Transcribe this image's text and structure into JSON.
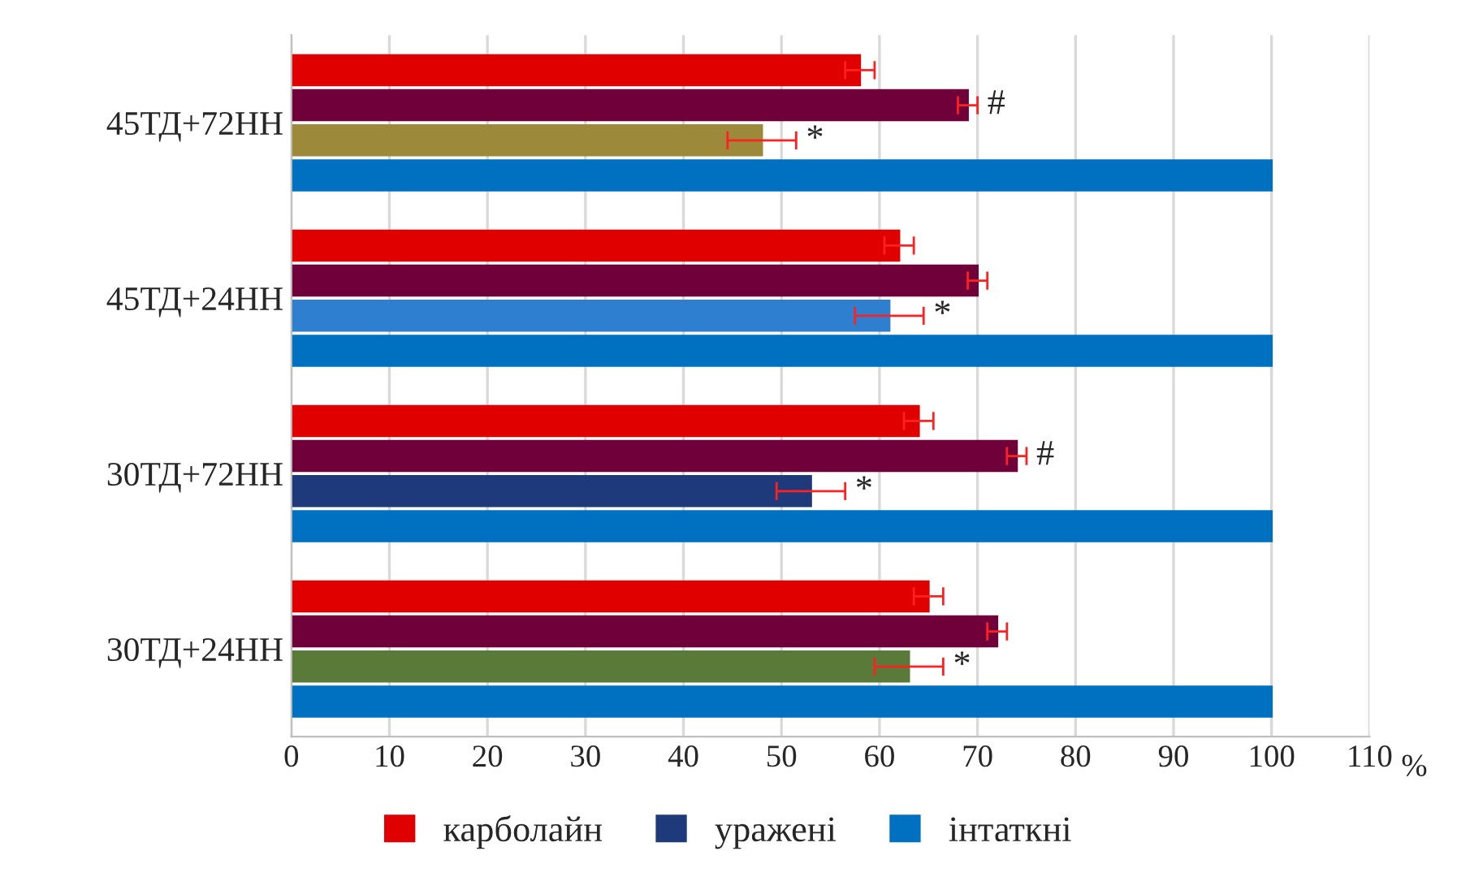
{
  "chart_data": {
    "type": "bar",
    "orientation": "horizontal",
    "categories": [
      "45ТД+72НН",
      "45ТД+24НН",
      "30ТД+72НН",
      "30ТД+24НН"
    ],
    "series": [
      {
        "name": "карболайн",
        "color": "#e00000",
        "values": [
          58,
          62,
          64,
          65
        ],
        "errors": [
          1.5,
          1.5,
          1.5,
          1.5
        ]
      },
      {
        "color": "#70003a",
        "values": [
          69,
          70,
          74,
          72
        ],
        "errors": [
          1,
          1,
          1,
          1
        ]
      },
      {
        "name": "уражені",
        "color": "#1f3a7a",
        "colors": [
          "#9c8a3a",
          "#2e7fd0",
          "#1f3a7a",
          "#5a7a3a"
        ],
        "values": [
          48,
          61,
          53,
          63
        ],
        "errors": [
          3.5,
          3.5,
          3.5,
          3.5
        ]
      },
      {
        "name": "інтаткні",
        "color": "#0070c0",
        "values": [
          100,
          100,
          100,
          100
        ]
      }
    ],
    "xlim": [
      0,
      110
    ],
    "xticks": [
      0,
      10,
      20,
      30,
      40,
      50,
      60,
      70,
      80,
      90,
      100,
      110
    ],
    "xlabel": "%",
    "grid": "x",
    "legend": "bottom",
    "annotations": [
      {
        "text": "#",
        "x": 69,
        "y": "45ТД+72НН"
      },
      {
        "text": "*",
        "x": 48,
        "y": "45ТД+72НН"
      },
      {
        "text": "*",
        "x": 61,
        "y": "45ТД+24НН"
      },
      {
        "text": "#",
        "x": 74,
        "y": "30ТД+72НН"
      },
      {
        "text": "*",
        "x": 53,
        "y": "30ТД+72НН"
      },
      {
        "text": "*",
        "x": 63,
        "y": "30ТД+24НН"
      }
    ]
  }
}
